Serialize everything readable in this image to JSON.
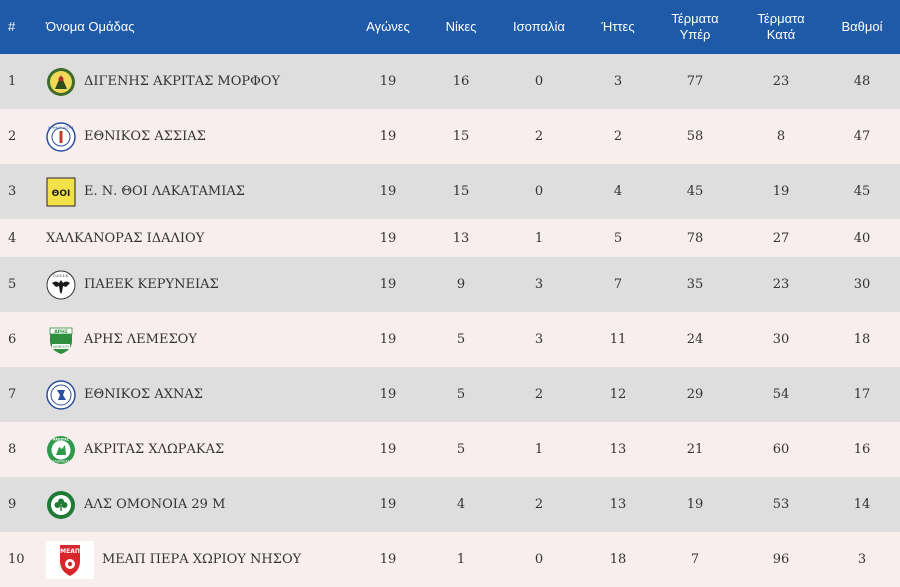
{
  "table": {
    "headers": {
      "pos": "#",
      "team": "Όνομα Ομάδας",
      "played": "Αγώνες",
      "wins": "Νίκες",
      "draws": "Ισοπαλία",
      "losses": "Ήττες",
      "goals_for": "Τέρματα Υπέρ",
      "goals_against": "Τέρματα Κατά",
      "points": "Βαθμοί"
    },
    "rows": [
      {
        "pos": "1",
        "team": "ΔΙΓΕΝΗΣ ΑΚΡΙΤΑΣ ΜΟΡΦΟΥ",
        "logo": "digenis-crest",
        "played": "19",
        "wins": "16",
        "draws": "0",
        "losses": "3",
        "goals_for": "77",
        "goals_against": "23",
        "points": "48"
      },
      {
        "pos": "2",
        "team": "ΕΘΝΙΚΟΣ ΑΣΣΙΑΣ",
        "logo": "ethnikos-assias-crest",
        "played": "19",
        "wins": "15",
        "draws": "2",
        "losses": "2",
        "goals_for": "58",
        "goals_against": "8",
        "points": "47"
      },
      {
        "pos": "3",
        "team": "Ε. Ν. ΘΟΙ ΛΑΚΑΤΑΜΙΑΣ",
        "logo": "thoi-crest",
        "played": "19",
        "wins": "15",
        "draws": "0",
        "losses": "4",
        "goals_for": "45",
        "goals_against": "19",
        "points": "45"
      },
      {
        "pos": "4",
        "team": "ΧΑΛΚΑΝΟΡΑΣ ΙΔΑΛΙΟΥ",
        "logo": "",
        "played": "19",
        "wins": "13",
        "draws": "1",
        "losses": "5",
        "goals_for": "78",
        "goals_against": "27",
        "points": "40"
      },
      {
        "pos": "5",
        "team": "ΠΑΕΕΚ ΚΕΡΥΝΕΙΑΣ",
        "logo": "paeek-eagle-crest",
        "played": "19",
        "wins": "9",
        "draws": "3",
        "losses": "7",
        "goals_for": "35",
        "goals_against": "23",
        "points": "30"
      },
      {
        "pos": "6",
        "team": "ΑΡΗΣ ΛΕΜΕΣΟΥ",
        "logo": "aris-shield-crest",
        "played": "19",
        "wins": "5",
        "draws": "3",
        "losses": "11",
        "goals_for": "24",
        "goals_against": "30",
        "points": "18"
      },
      {
        "pos": "7",
        "team": "ΕΘΝΙΚΟΣ ΑΧΝΑΣ",
        "logo": "ethnikos-achnas-crest",
        "played": "19",
        "wins": "5",
        "draws": "2",
        "losses": "12",
        "goals_for": "29",
        "goals_against": "54",
        "points": "17"
      },
      {
        "pos": "8",
        "team": "ΑΚΡΙΤΑΣ ΧΛΩΡΑΚΑΣ",
        "logo": "akritas-crest",
        "played": "19",
        "wins": "5",
        "draws": "1",
        "losses": "13",
        "goals_for": "21",
        "goals_against": "60",
        "points": "16"
      },
      {
        "pos": "9",
        "team": "ΑΛΣ ΟΜΟΝΟΙΑ 29 Μ",
        "logo": "omonoia-clover-crest",
        "played": "19",
        "wins": "4",
        "draws": "2",
        "losses": "13",
        "goals_for": "19",
        "goals_against": "53",
        "points": "14"
      },
      {
        "pos": "10",
        "team": "ΜΕΑΠ ΠΕΡΑ ΧΩΡΙΟΥ ΝΗΣΟΥ",
        "logo": "meap-crest",
        "played": "19",
        "wins": "1",
        "draws": "0",
        "losses": "18",
        "goals_for": "7",
        "goals_against": "96",
        "points": "3"
      }
    ]
  },
  "logo_text": {
    "digenis": "",
    "ethnikos_assias": "ΕΘΝΙΚΟΣ ΑΣΣΙΑΣ",
    "thoi": "ΘΟΙ",
    "paeek": "Π.Α.Ε.Ε.Κ.",
    "aris": "ΑΡΗΣ",
    "aris_bottom": "ΛΕΜΕΣΟΥ",
    "akritas": "ΑΚΡΙΤΑΣ",
    "akritas_bottom": "ΧΛΩΡΑΚΑΣ",
    "meap": "ΜΕΑΠ"
  },
  "colors": {
    "header_bg": "#1f5aa8",
    "row_odd": "#dedede",
    "row_even": "#f8eeee"
  }
}
